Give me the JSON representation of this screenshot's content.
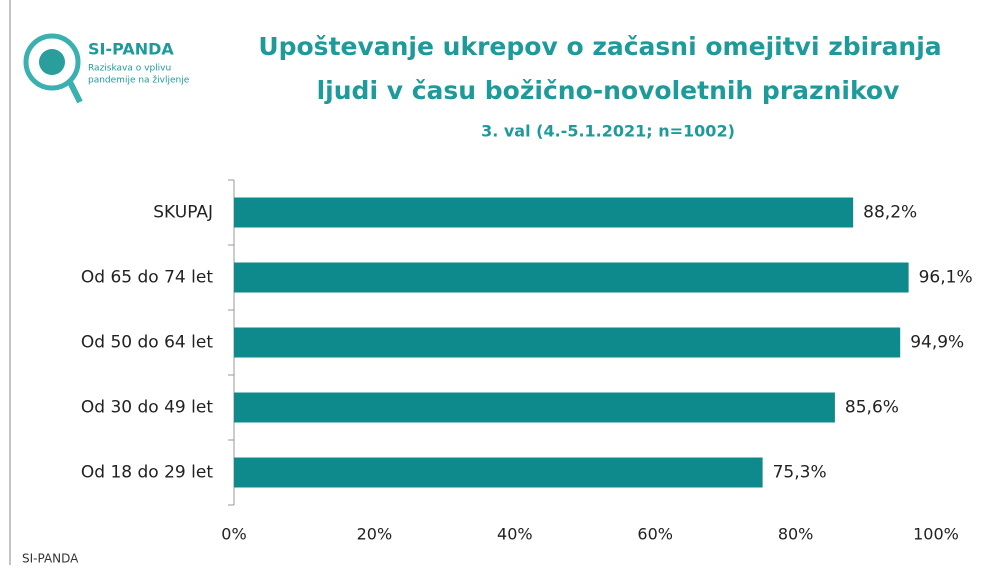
{
  "logo": {
    "name": "SI-PANDA",
    "line1": "Raziskava o vplivu",
    "line2": "pandemije na življenje"
  },
  "chart_data": {
    "type": "bar",
    "orientation": "horizontal",
    "title": [
      "Upoštevanje ukrepov o začasni omejitvi zbiranja",
      "ljudi v času božično-novoletnih praznikov"
    ],
    "subtitle": "3. val (4.-5.1.2021; n=1002)",
    "categories": [
      "SKUPAJ",
      "Od 65 do 74 let",
      "Od 50 do 64 let",
      "Od 30 do 49 let",
      "Od 18 do 29 let"
    ],
    "values": [
      88.2,
      96.1,
      94.9,
      85.6,
      75.3
    ],
    "value_labels": [
      "88,2%",
      "96,1%",
      "94,9%",
      "85,6%",
      "75,3%"
    ],
    "color": "#0e8a8c",
    "xlim": [
      0,
      100
    ],
    "xticks": [
      {
        "value": 0,
        "label": "0%"
      },
      {
        "value": 20,
        "label": "20%"
      },
      {
        "value": 40,
        "label": "40%"
      },
      {
        "value": 60,
        "label": "60%"
      },
      {
        "value": 80,
        "label": "80%"
      },
      {
        "value": 100,
        "label": "100%"
      }
    ],
    "grid": false
  },
  "footer": "SI-PANDA"
}
